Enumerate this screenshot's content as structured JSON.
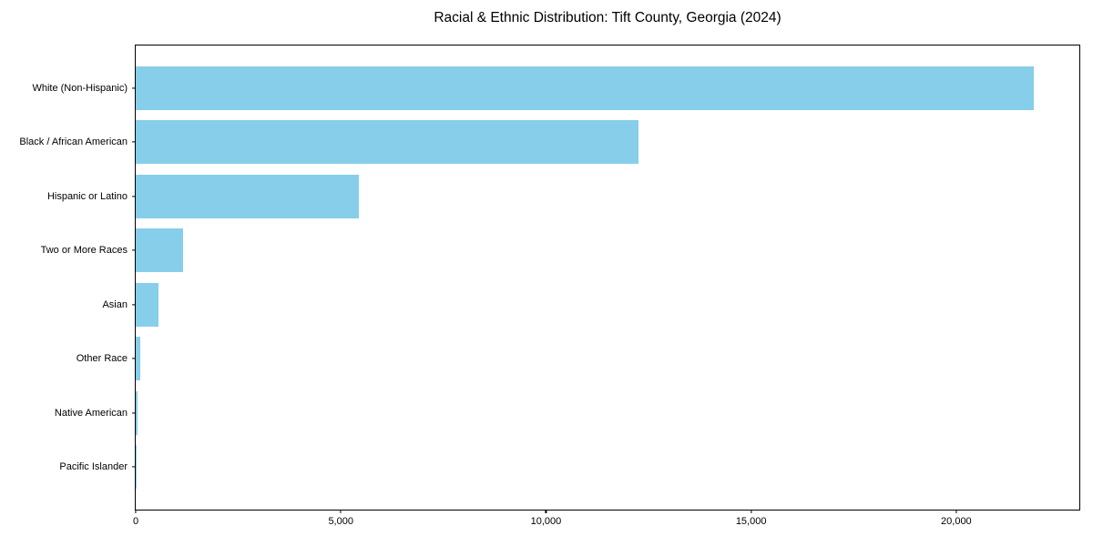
{
  "chart_data": {
    "type": "bar",
    "orientation": "horizontal",
    "title": "Racial & Ethnic Distribution: Tift County, Georgia (2024)",
    "categories": [
      "White (Non-Hispanic)",
      "Black / African American",
      "Hispanic or Latino",
      "Two or More Races",
      "Asian",
      "Other Race",
      "Native American",
      "Pacific Islander"
    ],
    "values": [
      21900,
      12250,
      5450,
      1150,
      550,
      100,
      50,
      15
    ],
    "xlabel": "",
    "ylabel": "",
    "xlim": [
      0,
      23000
    ],
    "x_ticks": [
      0,
      5000,
      10000,
      15000,
      20000
    ],
    "x_tick_labels": [
      "0",
      "5,000",
      "10,000",
      "15,000",
      "20,000"
    ],
    "bar_color": "#87CEEB",
    "spine_color": "#000000",
    "text_color": "#000000",
    "background_color": "#ffffff",
    "grid": false,
    "legend_position": "none"
  }
}
